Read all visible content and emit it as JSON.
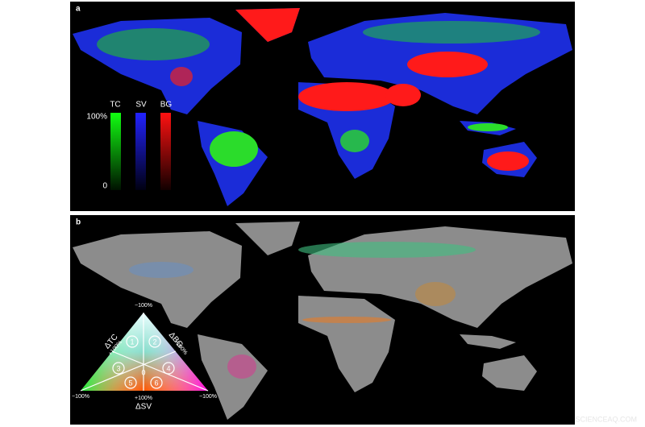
{
  "panel_a": {
    "label": "a",
    "legend": {
      "columns": [
        "TC",
        "SV",
        "BG"
      ],
      "max_label": "100%",
      "min_label": "0"
    }
  },
  "panel_b": {
    "label": "b",
    "triangle": {
      "top": "−100%",
      "left_label": "ΔTC",
      "left_value": "+100%",
      "right_label": "ΔBG",
      "right_value": "+100%",
      "bottom_left": "−100%",
      "bottom_right": "−100%",
      "bottom_value": "+100%",
      "bottom_label": "ΔSV",
      "center": "0",
      "regions": [
        "1",
        "2",
        "3",
        "4",
        "5",
        "6"
      ]
    }
  },
  "watermark": "SCIENCEAQ.COM"
}
